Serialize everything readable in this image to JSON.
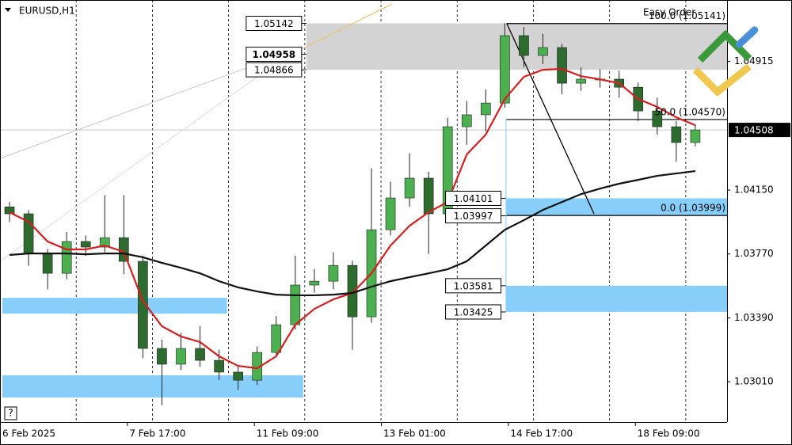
{
  "chart_data": {
    "type": "candlestick",
    "title": "EURUSD,H1",
    "panel_label": "Easy Order",
    "xlim": [
      0,
      229
    ],
    "ylim": [
      1.0277,
      1.05281
    ],
    "yticks": [
      {
        "value": 1.0301,
        "label": "1.03010"
      },
      {
        "value": 1.0339,
        "label": "1.03390"
      },
      {
        "value": 1.0377,
        "label": "1.03770"
      },
      {
        "value": 1.0415,
        "label": "1.04150"
      },
      1.04915
    ],
    "xticks": [
      {
        "value": 0,
        "label": "6 Feb 2025"
      },
      {
        "value": 40,
        "label": "7 Feb 17:00"
      },
      {
        "value": 80,
        "label": "11 Feb 09:00"
      },
      {
        "value": 120,
        "label": "13 Feb 01:00"
      },
      {
        "value": 160,
        "label": "14 Feb 17:00"
      },
      {
        "value": 200,
        "label": "18 Feb 09:00"
      }
    ],
    "xgrid": [
      24,
      48,
      72,
      96,
      120,
      144,
      168,
      192,
      216
    ],
    "x": [
      3,
      9,
      15,
      21,
      27,
      33,
      39,
      45,
      51,
      57,
      63,
      69,
      75,
      81,
      87,
      93,
      99,
      105,
      111,
      117,
      123,
      129,
      135,
      141,
      147,
      153,
      159,
      165,
      171,
      177,
      183,
      189,
      195,
      201,
      207,
      213,
      219
    ],
    "ohlc": {
      "open": [
        1.0405,
        1.04009,
        1.03773,
        1.03655,
        1.03844,
        1.03811,
        1.03867,
        1.03726,
        1.03208,
        1.03114,
        1.03208,
        1.03137,
        1.03067,
        1.03019,
        1.03184,
        1.03349,
        1.03585,
        1.03608,
        1.03702,
        1.03396,
        1.03914,
        1.04103,
        1.04221,
        1.04009,
        1.04527,
        1.04598,
        1.04668,
        1.05069,
        1.04951,
        1.04998,
        1.04786,
        1.0481,
        1.0481,
        1.04762,
        1.04621,
        1.04527,
        1.04433
      ],
      "high": [
        1.0408,
        1.0403,
        1.038,
        1.039,
        1.0388,
        1.0412,
        1.0412,
        1.0376,
        1.0326,
        1.033,
        1.0334,
        1.032,
        1.031,
        1.0322,
        1.034,
        1.0376,
        1.0368,
        1.0378,
        1.0373,
        1.0428,
        1.042,
        1.0437,
        1.0426,
        1.0458,
        1.0468,
        1.0475,
        1.05142,
        1.0512,
        1.0508,
        1.0502,
        1.0488,
        1.0487,
        1.0486,
        1.0479,
        1.047,
        1.0456,
        1.0454
      ],
      "low": [
        1.0396,
        1.037,
        1.0356,
        1.0362,
        1.0376,
        1.0378,
        1.0365,
        1.0315,
        1.0287,
        1.0308,
        1.031,
        1.0302,
        1.0296,
        1.0299,
        1.0316,
        1.0332,
        1.0354,
        1.0356,
        1.032,
        1.0336,
        1.0388,
        1.0405,
        1.0377,
        1.0398,
        1.0442,
        1.045,
        1.0464,
        1.0488,
        1.049,
        1.0472,
        1.0474,
        1.0476,
        1.047,
        1.0456,
        1.0448,
        1.0432,
        1.0441
      ],
      "close": [
        1.04009,
        1.03773,
        1.03655,
        1.03844,
        1.03811,
        1.03867,
        1.03726,
        1.03208,
        1.03114,
        1.03208,
        1.03137,
        1.03067,
        1.03019,
        1.03184,
        1.03349,
        1.03585,
        1.03608,
        1.03702,
        1.03396,
        1.03914,
        1.04103,
        1.04221,
        1.04009,
        1.04527,
        1.04598,
        1.04668,
        1.05069,
        1.04951,
        1.04998,
        1.04786,
        1.0481,
        1.0481,
        1.04762,
        1.04621,
        1.04527,
        1.04433,
        1.04508
      ]
    },
    "up_color": "#4caf50",
    "down_color": "#2e6b2e",
    "wick_color": "#222222",
    "lines": [
      {
        "color": "#d42020",
        "values": [
          1.04018,
          1.03962,
          1.03844,
          1.03797,
          1.03797,
          1.0382,
          1.03783,
          1.0349,
          1.0334,
          1.03279,
          1.03246,
          1.03161,
          1.03104,
          1.0309,
          1.03161,
          1.03349,
          1.03443,
          1.035,
          1.03538,
          1.03655,
          1.0382,
          1.03938,
          1.04018,
          1.04079,
          1.04362,
          1.0448,
          1.04692,
          1.04824,
          1.04866,
          1.04871,
          1.04828,
          1.04809,
          1.04786,
          1.04692,
          1.04645,
          1.04583,
          1.04536
        ]
      },
      {
        "color": "#111111",
        "values": [
          1.03764,
          1.03773,
          1.03773,
          1.03773,
          1.03768,
          1.03773,
          1.03773,
          1.0375,
          1.03717,
          1.03688,
          1.03655,
          1.03608,
          1.03571,
          1.03547,
          1.03528,
          1.03524,
          1.03524,
          1.03528,
          1.03538,
          1.03575,
          1.03608,
          1.03632,
          1.03655,
          1.03679,
          1.03726,
          1.0382,
          1.03914,
          1.03971,
          1.04032,
          1.04079,
          1.04126,
          1.04159,
          1.04188,
          1.04211,
          1.04235,
          1.04249,
          1.04263
        ]
      }
    ],
    "zones": [
      {
        "from": 1.04866,
        "to": 1.05142,
        "start": 96.5,
        "end": 229,
        "color": "#d3d3d3",
        "labels": [
          1.05142,
          1.04958,
          1.04866
        ]
      },
      {
        "from": 1.03997,
        "to": 1.04101,
        "start": 159.3,
        "end": 229,
        "color": "#87cefa",
        "labels": [
          1.04101,
          1.03997
        ]
      },
      {
        "from": 1.03425,
        "to": 1.03581,
        "start": 159.3,
        "end": 229,
        "color": "#87cefa",
        "labels": [
          1.03581,
          1.03425
        ]
      },
      {
        "from": 1.03415,
        "to": 1.03509,
        "start": 0.75,
        "end": 71.5,
        "color": "#87cefa"
      },
      {
        "from": 1.02916,
        "to": 1.03048,
        "start": 0.75,
        "end": 95.5,
        "color": "#87cefa"
      }
    ],
    "fib": {
      "start": 159.5,
      "end": 229,
      "levels": [
        {
          "value": 1.05141,
          "label": "100.0 (1.05141)"
        },
        {
          "value": 1.0457,
          "label": "50.0 (1.04570)"
        },
        {
          "value": 1.03999,
          "label": "0.0 (1.03999)"
        }
      ]
    },
    "last": 1.04508
  }
}
